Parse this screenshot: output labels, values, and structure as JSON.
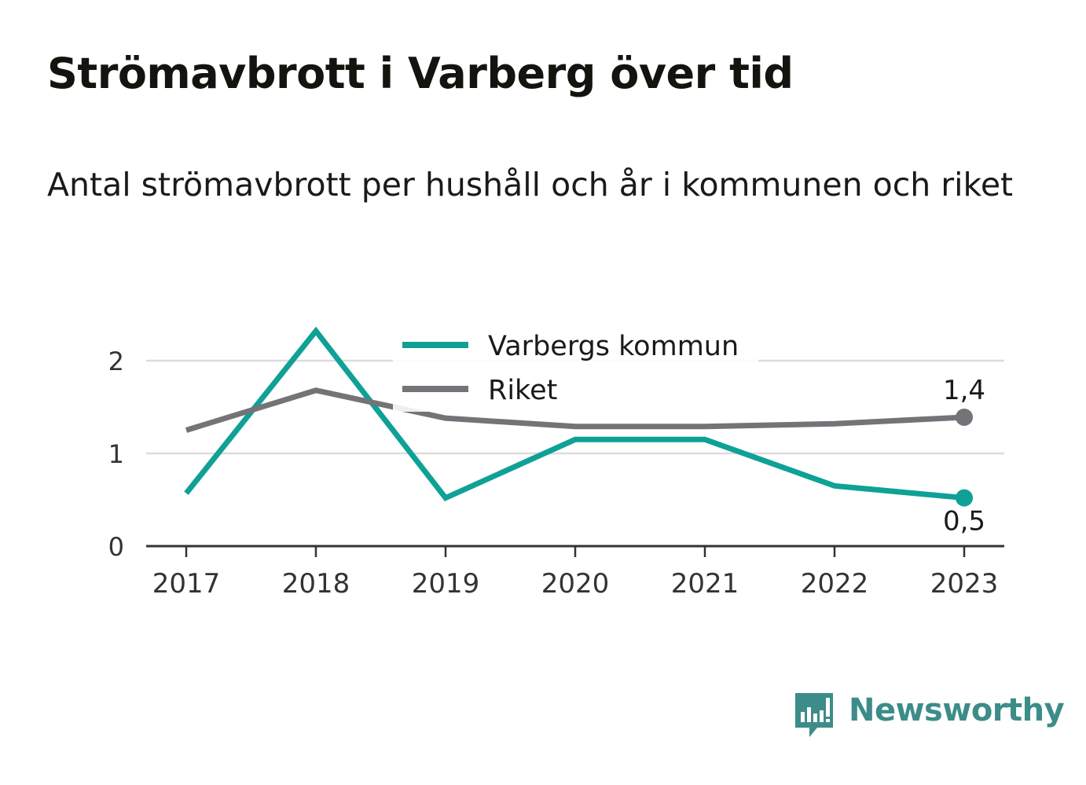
{
  "title": "Strömavbrott i Varberg över tid",
  "subtitle": "Antal strömavbrott per hushåll och år i kommunen och riket",
  "colors": {
    "varberg": "#0fa196",
    "riket": "#737378",
    "grid": "#dcdcdc",
    "axis": "#333333",
    "text": "#333333",
    "logo": "#3c8c8a"
  },
  "brand": "Newsworthy",
  "chart_data": {
    "type": "line",
    "x": [
      "2017",
      "2018",
      "2019",
      "2020",
      "2021",
      "2022",
      "2023"
    ],
    "ylim": [
      0,
      2.5
    ],
    "yticks": [
      {
        "value": 0,
        "label": "0"
      },
      {
        "value": 1,
        "label": "1"
      },
      {
        "value": 2,
        "label": "2"
      }
    ],
    "grid": true,
    "legend": "top-center",
    "series": [
      {
        "name": "Varbergs kommun",
        "color": "#0fa196",
        "values": [
          0.57,
          2.32,
          0.52,
          1.15,
          1.15,
          0.65,
          0.52
        ],
        "end_label": "0,5",
        "end_label_position": "below"
      },
      {
        "name": "Riket",
        "color": "#737378",
        "values": [
          1.25,
          1.68,
          1.38,
          1.29,
          1.29,
          1.32,
          1.39
        ],
        "end_label": "1,4",
        "end_label_position": "above"
      }
    ]
  }
}
